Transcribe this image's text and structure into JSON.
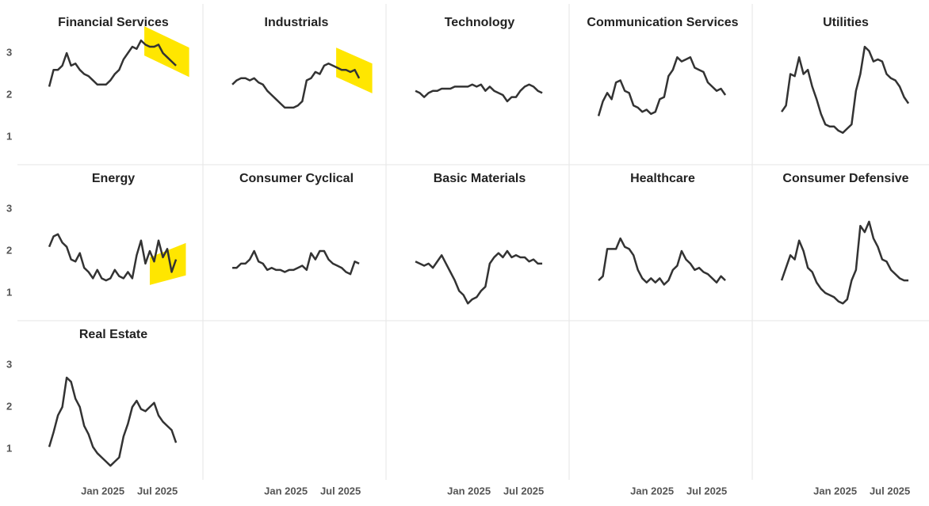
{
  "chart_data": [
    {
      "type": "line",
      "title": "Financial Services",
      "color": "#333333",
      "xlim": [
        2024.35,
        2025.8
      ],
      "ylim": [
        0.5,
        3.8
      ],
      "yticks": [
        1,
        2,
        3
      ],
      "x": [
        2024.51,
        2024.55,
        2024.59,
        2024.63,
        2024.67,
        2024.71,
        2024.75,
        2024.79,
        2024.83,
        2024.87,
        2024.91,
        2024.95,
        2024.99,
        2025.03,
        2025.07,
        2025.11,
        2025.15,
        2025.19,
        2025.23,
        2025.27,
        2025.31,
        2025.35,
        2025.39,
        2025.43,
        2025.47,
        2025.51,
        2025.55,
        2025.59,
        2025.63,
        2025.67
      ],
      "values": [
        2.2,
        2.6,
        2.6,
        2.7,
        3.0,
        2.7,
        2.75,
        2.6,
        2.5,
        2.45,
        2.35,
        2.25,
        2.25,
        2.25,
        2.35,
        2.5,
        2.6,
        2.85,
        3.0,
        3.15,
        3.1,
        3.3,
        3.2,
        3.15,
        3.15,
        3.2,
        3.0,
        2.9,
        2.8,
        2.7
      ],
      "highlight": {
        "x": [
          2025.38,
          2025.79
        ],
        "lower": [
          2.94,
          2.43
        ],
        "upper": [
          3.64,
          3.13
        ],
        "color": "#ffe600"
      }
    },
    {
      "type": "line",
      "title": "Industrials",
      "color": "#333333",
      "xlim": [
        2024.35,
        2025.8
      ],
      "ylim": [
        0.5,
        3.8
      ],
      "x": [
        2024.51,
        2024.55,
        2024.59,
        2024.63,
        2024.67,
        2024.71,
        2024.75,
        2024.79,
        2024.83,
        2024.87,
        2024.91,
        2024.95,
        2024.99,
        2025.03,
        2025.07,
        2025.11,
        2025.15,
        2025.19,
        2025.23,
        2025.27,
        2025.31,
        2025.35,
        2025.39,
        2025.43,
        2025.47,
        2025.51,
        2025.55,
        2025.59,
        2025.63,
        2025.67
      ],
      "values": [
        2.25,
        2.35,
        2.4,
        2.4,
        2.35,
        2.4,
        2.3,
        2.25,
        2.1,
        2.0,
        1.9,
        1.8,
        1.7,
        1.7,
        1.7,
        1.75,
        1.85,
        2.35,
        2.4,
        2.55,
        2.5,
        2.7,
        2.75,
        2.7,
        2.65,
        2.6,
        2.6,
        2.55,
        2.6,
        2.4
      ],
      "highlight": {
        "x": [
          2025.46,
          2025.79
        ],
        "lower": [
          2.43,
          2.04
        ],
        "upper": [
          3.13,
          2.75
        ],
        "color": "#ffe600"
      }
    },
    {
      "type": "line",
      "title": "Technology",
      "color": "#333333",
      "xlim": [
        2024.35,
        2025.8
      ],
      "ylim": [
        0.5,
        3.8
      ],
      "x": [
        2024.51,
        2024.55,
        2024.59,
        2024.63,
        2024.67,
        2024.71,
        2024.75,
        2024.79,
        2024.83,
        2024.87,
        2024.91,
        2024.95,
        2024.99,
        2025.03,
        2025.07,
        2025.11,
        2025.15,
        2025.19,
        2025.23,
        2025.27,
        2025.31,
        2025.35,
        2025.39,
        2025.43,
        2025.47,
        2025.51,
        2025.55,
        2025.59,
        2025.63,
        2025.67
      ],
      "values": [
        2.1,
        2.05,
        1.95,
        2.05,
        2.1,
        2.1,
        2.15,
        2.15,
        2.15,
        2.2,
        2.2,
        2.2,
        2.2,
        2.25,
        2.2,
        2.25,
        2.1,
        2.2,
        2.1,
        2.05,
        2.0,
        1.85,
        1.95,
        1.95,
        2.1,
        2.2,
        2.25,
        2.2,
        2.1,
        2.05
      ]
    },
    {
      "type": "line",
      "title": "Communication Services",
      "color": "#333333",
      "xlim": [
        2024.35,
        2025.8
      ],
      "ylim": [
        0.5,
        3.8
      ],
      "x": [
        2024.51,
        2024.55,
        2024.59,
        2024.63,
        2024.67,
        2024.71,
        2024.75,
        2024.79,
        2024.83,
        2024.87,
        2024.91,
        2024.95,
        2024.99,
        2025.03,
        2025.07,
        2025.11,
        2025.15,
        2025.19,
        2025.23,
        2025.27,
        2025.31,
        2025.35,
        2025.39,
        2025.43,
        2025.47,
        2025.51,
        2025.55,
        2025.59,
        2025.63,
        2025.67
      ],
      "values": [
        1.5,
        1.85,
        2.05,
        1.9,
        2.3,
        2.35,
        2.1,
        2.05,
        1.75,
        1.7,
        1.6,
        1.65,
        1.55,
        1.6,
        1.9,
        1.95,
        2.45,
        2.6,
        2.9,
        2.8,
        2.85,
        2.9,
        2.65,
        2.6,
        2.55,
        2.3,
        2.2,
        2.1,
        2.15,
        2.0
      ]
    },
    {
      "type": "line",
      "title": "Utilities",
      "color": "#333333",
      "xlim": [
        2024.35,
        2025.8
      ],
      "ylim": [
        0.5,
        3.8
      ],
      "x": [
        2024.51,
        2024.55,
        2024.59,
        2024.63,
        2024.67,
        2024.71,
        2024.75,
        2024.79,
        2024.83,
        2024.87,
        2024.91,
        2024.95,
        2024.99,
        2025.03,
        2025.07,
        2025.11,
        2025.15,
        2025.19,
        2025.23,
        2025.27,
        2025.31,
        2025.35,
        2025.39,
        2025.43,
        2025.47,
        2025.51,
        2025.55,
        2025.59,
        2025.63,
        2025.67
      ],
      "values": [
        1.6,
        1.75,
        2.5,
        2.45,
        2.9,
        2.5,
        2.6,
        2.2,
        1.9,
        1.55,
        1.3,
        1.25,
        1.25,
        1.15,
        1.1,
        1.2,
        1.3,
        2.1,
        2.5,
        3.15,
        3.05,
        2.8,
        2.85,
        2.8,
        2.5,
        2.4,
        2.35,
        2.2,
        1.95,
        1.8
      ]
    },
    {
      "type": "line",
      "title": "Energy",
      "color": "#333333",
      "xlim": [
        2024.35,
        2025.8
      ],
      "ylim": [
        0.5,
        3.8
      ],
      "yticks": [
        1,
        2,
        3
      ],
      "x": [
        2024.51,
        2024.55,
        2024.59,
        2024.63,
        2024.67,
        2024.71,
        2024.75,
        2024.79,
        2024.83,
        2024.87,
        2024.91,
        2024.95,
        2024.99,
        2025.03,
        2025.07,
        2025.11,
        2025.15,
        2025.19,
        2025.23,
        2025.27,
        2025.31,
        2025.35,
        2025.39,
        2025.43,
        2025.47,
        2025.51,
        2025.55,
        2025.59,
        2025.63,
        2025.67
      ],
      "values": [
        2.1,
        2.35,
        2.4,
        2.2,
        2.1,
        1.8,
        1.75,
        1.95,
        1.6,
        1.5,
        1.35,
        1.55,
        1.35,
        1.3,
        1.35,
        1.55,
        1.4,
        1.35,
        1.5,
        1.35,
        1.9,
        2.25,
        1.7,
        2.0,
        1.75,
        2.25,
        1.85,
        2.05,
        1.5,
        1.8
      ],
      "highlight": {
        "x": [
          2025.43,
          2025.76
        ],
        "lower": [
          1.19,
          1.42
        ],
        "upper": [
          1.85,
          2.19
        ],
        "color": "#ffe600"
      }
    },
    {
      "type": "line",
      "title": "Consumer Cyclical",
      "color": "#333333",
      "xlim": [
        2024.35,
        2025.8
      ],
      "ylim": [
        0.5,
        3.8
      ],
      "xticks": [
        {
          "value": 2025,
          "label": "Jan 2025"
        },
        {
          "value": 2025.5,
          "label": "Jul 2025"
        }
      ],
      "x": [
        2024.51,
        2024.55,
        2024.59,
        2024.63,
        2024.67,
        2024.71,
        2024.75,
        2024.79,
        2024.83,
        2024.87,
        2024.91,
        2024.95,
        2024.99,
        2025.03,
        2025.07,
        2025.11,
        2025.15,
        2025.19,
        2025.23,
        2025.27,
        2025.31,
        2025.35,
        2025.39,
        2025.43,
        2025.47,
        2025.51,
        2025.55,
        2025.59,
        2025.63,
        2025.67
      ],
      "values": [
        1.6,
        1.6,
        1.7,
        1.7,
        1.8,
        2.0,
        1.75,
        1.7,
        1.55,
        1.6,
        1.55,
        1.55,
        1.5,
        1.55,
        1.55,
        1.6,
        1.65,
        1.55,
        1.95,
        1.8,
        2.0,
        2.0,
        1.8,
        1.7,
        1.65,
        1.6,
        1.5,
        1.45,
        1.75,
        1.7
      ]
    },
    {
      "type": "line",
      "title": "Basic Materials",
      "color": "#333333",
      "xlim": [
        2024.35,
        2025.8
      ],
      "ylim": [
        0.5,
        3.8
      ],
      "xticks": [
        {
          "value": 2025,
          "label": "Jan 2025"
        },
        {
          "value": 2025.5,
          "label": "Jul 2025"
        }
      ],
      "x": [
        2024.51,
        2024.55,
        2024.59,
        2024.63,
        2024.67,
        2024.71,
        2024.75,
        2024.79,
        2024.83,
        2024.87,
        2024.91,
        2024.95,
        2024.99,
        2025.03,
        2025.07,
        2025.11,
        2025.15,
        2025.19,
        2025.23,
        2025.27,
        2025.31,
        2025.35,
        2025.39,
        2025.43,
        2025.47,
        2025.51,
        2025.55,
        2025.59,
        2025.63,
        2025.67
      ],
      "values": [
        1.75,
        1.7,
        1.65,
        1.7,
        1.6,
        1.75,
        1.9,
        1.7,
        1.5,
        1.3,
        1.05,
        0.95,
        0.75,
        0.85,
        0.9,
        1.05,
        1.15,
        1.7,
        1.85,
        1.95,
        1.85,
        2.0,
        1.85,
        1.9,
        1.85,
        1.85,
        1.75,
        1.8,
        1.7,
        1.7
      ]
    },
    {
      "type": "line",
      "title": "Healthcare",
      "color": "#333333",
      "xlim": [
        2024.35,
        2025.8
      ],
      "ylim": [
        0.5,
        3.8
      ],
      "xticks": [
        {
          "value": 2025,
          "label": "Jan 2025"
        },
        {
          "value": 2025.5,
          "label": "Jul 2025"
        }
      ],
      "x": [
        2024.51,
        2024.55,
        2024.59,
        2024.63,
        2024.67,
        2024.71,
        2024.75,
        2024.79,
        2024.83,
        2024.87,
        2024.91,
        2024.95,
        2024.99,
        2025.03,
        2025.07,
        2025.11,
        2025.15,
        2025.19,
        2025.23,
        2025.27,
        2025.31,
        2025.35,
        2025.39,
        2025.43,
        2025.47,
        2025.51,
        2025.55,
        2025.59,
        2025.63,
        2025.67
      ],
      "values": [
        1.3,
        1.4,
        2.05,
        2.05,
        2.05,
        2.3,
        2.1,
        2.05,
        1.9,
        1.55,
        1.35,
        1.25,
        1.35,
        1.25,
        1.35,
        1.2,
        1.3,
        1.55,
        1.65,
        2.0,
        1.8,
        1.7,
        1.55,
        1.6,
        1.5,
        1.45,
        1.35,
        1.25,
        1.4,
        1.3
      ]
    },
    {
      "type": "line",
      "title": "Consumer Defensive",
      "color": "#333333",
      "xlim": [
        2024.35,
        2025.8
      ],
      "ylim": [
        0.5,
        3.8
      ],
      "xticks": [
        {
          "value": 2025,
          "label": "Jan 2025"
        },
        {
          "value": 2025.5,
          "label": "Jul 2025"
        }
      ],
      "x": [
        2024.51,
        2024.55,
        2024.59,
        2024.63,
        2024.67,
        2024.71,
        2024.75,
        2024.79,
        2024.83,
        2024.87,
        2024.91,
        2024.95,
        2024.99,
        2025.03,
        2025.07,
        2025.11,
        2025.15,
        2025.19,
        2025.23,
        2025.27,
        2025.31,
        2025.35,
        2025.39,
        2025.43,
        2025.47,
        2025.51,
        2025.55,
        2025.59,
        2025.63,
        2025.67
      ],
      "values": [
        1.3,
        1.6,
        1.9,
        1.8,
        2.25,
        2.0,
        1.6,
        1.5,
        1.25,
        1.1,
        1.0,
        0.95,
        0.9,
        0.8,
        0.75,
        0.85,
        1.3,
        1.55,
        2.6,
        2.45,
        2.7,
        2.3,
        2.1,
        1.8,
        1.75,
        1.55,
        1.45,
        1.35,
        1.3,
        1.3
      ]
    },
    {
      "type": "line",
      "title": "Real Estate",
      "color": "#333333",
      "xlim": [
        2024.35,
        2025.8
      ],
      "ylim": [
        0.5,
        3.8
      ],
      "yticks": [
        1,
        2,
        3
      ],
      "xticks": [
        {
          "value": 2025,
          "label": "Jan 2025"
        },
        {
          "value": 2025.5,
          "label": "Jul 2025"
        }
      ],
      "x": [
        2024.51,
        2024.55,
        2024.59,
        2024.63,
        2024.67,
        2024.71,
        2024.75,
        2024.79,
        2024.83,
        2024.87,
        2024.91,
        2024.95,
        2024.99,
        2025.03,
        2025.07,
        2025.11,
        2025.15,
        2025.19,
        2025.23,
        2025.27,
        2025.31,
        2025.35,
        2025.39,
        2025.43,
        2025.47,
        2025.51,
        2025.55,
        2025.59,
        2025.63,
        2025.67
      ],
      "values": [
        1.05,
        1.4,
        1.8,
        2.0,
        2.7,
        2.6,
        2.2,
        2.0,
        1.55,
        1.35,
        1.05,
        0.9,
        0.8,
        0.7,
        0.6,
        0.7,
        0.8,
        1.3,
        1.6,
        2.0,
        2.15,
        1.95,
        1.9,
        2.0,
        2.1,
        1.8,
        1.65,
        1.55,
        1.45,
        1.15
      ]
    }
  ]
}
